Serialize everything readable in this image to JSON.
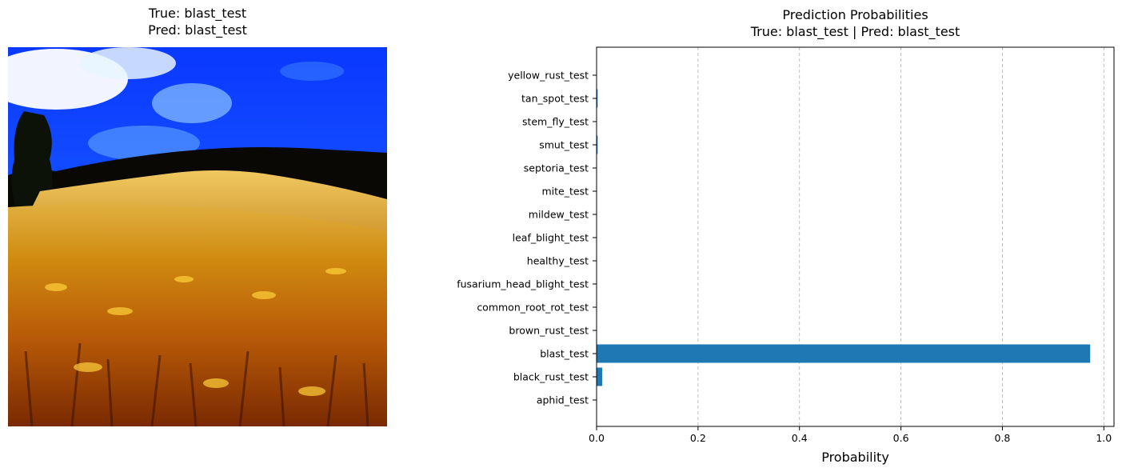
{
  "image_panel": {
    "title_line1": "True: blast_test",
    "title_line2": "Pred: blast_test",
    "description": "wheat field photo"
  },
  "chart_data": {
    "type": "bar",
    "orientation": "horizontal",
    "title": "Prediction Probabilities",
    "subtitle": "True: blast_test | Pred: blast_test",
    "xlabel": "Probability",
    "ylabel": "",
    "xlim": [
      0,
      1.02
    ],
    "xticks": [
      "0.0",
      "0.2",
      "0.4",
      "0.6",
      "0.8",
      "1.0"
    ],
    "xtick_values": [
      0,
      0.2,
      0.4,
      0.6,
      0.8,
      1.0
    ],
    "grid": "x-dashed",
    "bar_color": "#1f77b4",
    "categories": [
      "aphid_test",
      "black_rust_test",
      "blast_test",
      "brown_rust_test",
      "common_root_rot_test",
      "fusarium_head_blight_test",
      "healthy_test",
      "leaf_blight_test",
      "mildew_test",
      "mite_test",
      "septoria_test",
      "smut_test",
      "stem_fly_test",
      "tan_spot_test",
      "yellow_rust_test"
    ],
    "values": [
      0.0005,
      0.011,
      0.973,
      0.0005,
      0.0005,
      0.0005,
      0.0005,
      0.0005,
      0.0005,
      0.0005,
      0.0005,
      0.002,
      0.0005,
      0.002,
      0.0005
    ]
  }
}
